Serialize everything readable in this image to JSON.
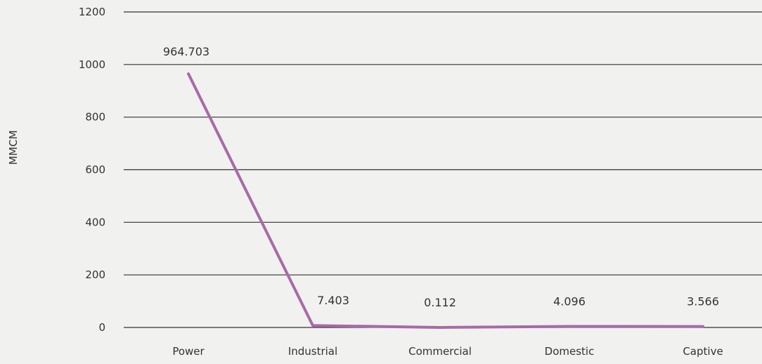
{
  "chart_data": {
    "type": "line",
    "title": "",
    "xlabel": "",
    "ylabel": "MMCM",
    "categories": [
      "Power",
      "Industrial",
      "Commercial",
      "Domestic",
      "Captive"
    ],
    "series": [
      {
        "values": [
          964.703,
          7.403,
          0.112,
          4.096,
          3.566
        ]
      }
    ],
    "data_labels": [
      "964.703",
      "7.403",
      "0.112",
      "4.096",
      "3.566"
    ],
    "yticks": [
      0,
      200,
      400,
      600,
      800,
      1000,
      1200
    ],
    "ylim": [
      0,
      1200
    ],
    "grid": true,
    "legend": "none"
  },
  "colors": {
    "line": "#a86aa8",
    "grid": "#333333",
    "background": "#f1f1f0"
  }
}
